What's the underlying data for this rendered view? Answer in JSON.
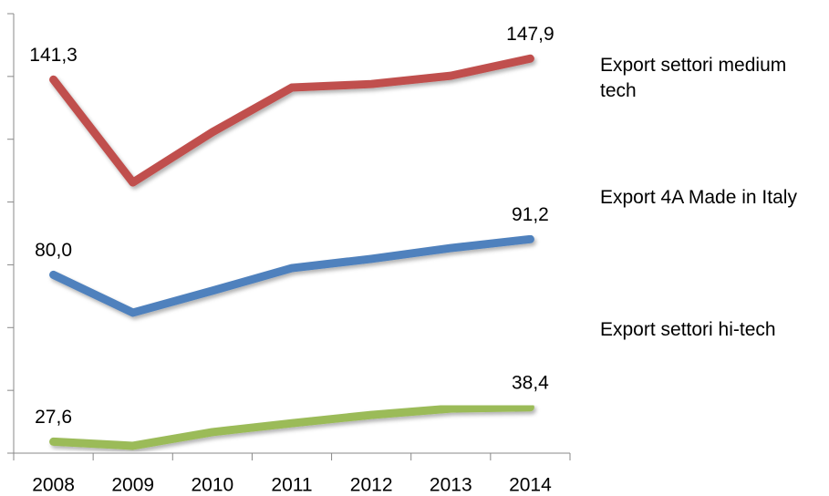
{
  "chart_data": {
    "type": "line",
    "categories": [
      "2008",
      "2009",
      "2010",
      "2011",
      "2012",
      "2013",
      "2014"
    ],
    "series": [
      {
        "name": "Export settori medium tech",
        "color": "#c0504d",
        "values": [
          141.3,
          109.0,
          124.8,
          138.8,
          139.9,
          142.5,
          147.9
        ],
        "value_labels": [
          "141,3",
          null,
          null,
          null,
          null,
          null,
          "147,9"
        ]
      },
      {
        "name": "Export 4A Made in Italy",
        "color": "#4f81bd",
        "values": [
          80.0,
          68.1,
          75.0,
          82.1,
          85.0,
          88.4,
          91.2
        ],
        "value_labels": [
          "80,0",
          null,
          null,
          null,
          null,
          null,
          "91,2"
        ]
      },
      {
        "name": "Export settori hi-tech",
        "color": "#9bbb59",
        "values": [
          27.6,
          26.3,
          30.6,
          33.4,
          36.0,
          38.0,
          38.4
        ],
        "value_labels": [
          "27,6",
          null,
          null,
          null,
          null,
          null,
          "38,4"
        ]
      }
    ],
    "ylim": [
      24,
      162
    ],
    "yticks": [
      24,
      43.71,
      63.43,
      83.14,
      102.86,
      122.57,
      142.29,
      162
    ],
    "legend": "right"
  }
}
